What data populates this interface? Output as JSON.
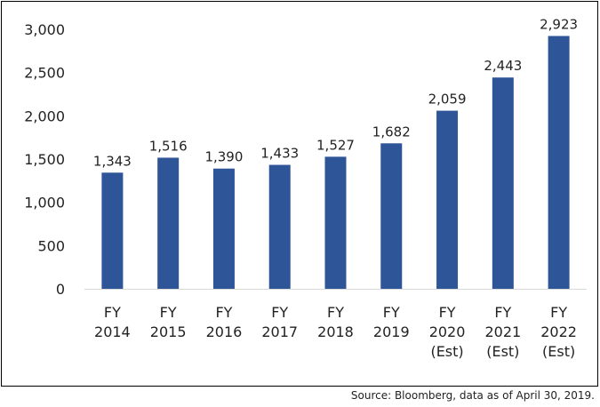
{
  "chart_data": {
    "type": "bar",
    "categories": [
      [
        "FY",
        "2014"
      ],
      [
        "FY",
        "2015"
      ],
      [
        "FY",
        "2016"
      ],
      [
        "FY",
        "2017"
      ],
      [
        "FY",
        "2018"
      ],
      [
        "FY",
        "2019"
      ],
      [
        "FY",
        "2020",
        "(Est)"
      ],
      [
        "FY",
        "2021",
        "(Est)"
      ],
      [
        "FY",
        "2022",
        "(Est)"
      ]
    ],
    "values": [
      1343,
      1516,
      1390,
      1433,
      1527,
      1682,
      2059,
      2443,
      2923
    ],
    "value_labels": [
      "1,343",
      "1,516",
      "1,390",
      "1,433",
      "1,527",
      "1,682",
      "2,059",
      "2,443",
      "2,923"
    ],
    "yticks": [
      0,
      500,
      1000,
      1500,
      2000,
      2500,
      3000
    ],
    "ytick_labels": [
      "0",
      "500",
      "1,000",
      "1,500",
      "2,000",
      "2,500",
      "3,000"
    ],
    "ylim": [
      0,
      3000
    ],
    "title": "",
    "xlabel": "",
    "ylabel": "",
    "grid": false,
    "legend": "none",
    "bar_color": "#2E5597"
  },
  "source_note": "Source: Bloomberg, data as of April 30, 2019."
}
